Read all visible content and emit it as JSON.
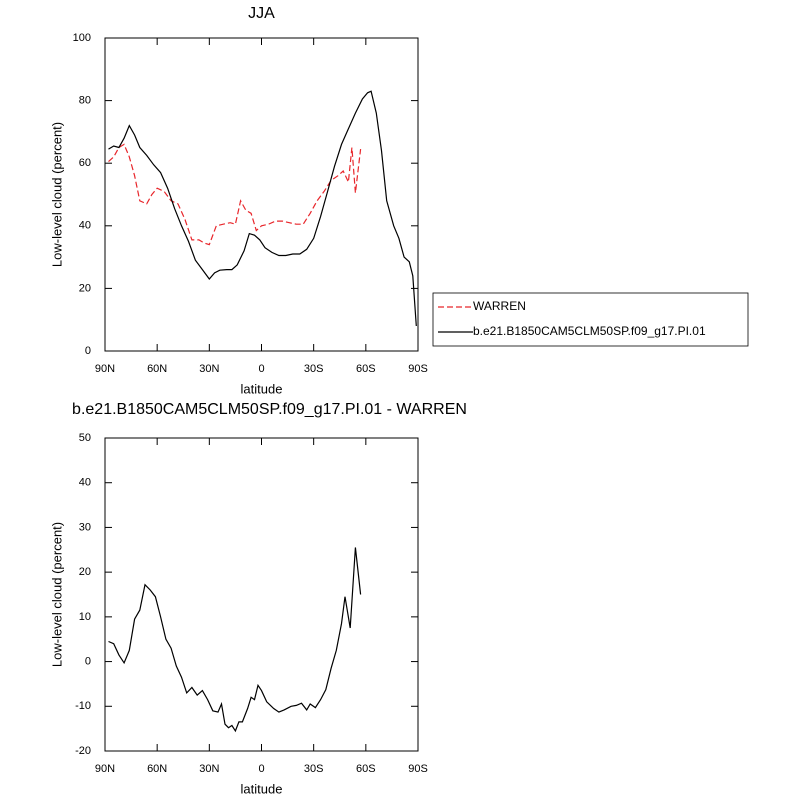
{
  "chart_data": [
    {
      "type": "line",
      "title": "JJA",
      "x_label": "latitude",
      "y_label": "Low-level cloud (percent)",
      "xlim": [
        90,
        -90
      ],
      "xticks": [
        {
          "value": 90,
          "label": "90N"
        },
        {
          "value": 60,
          "label": "60N"
        },
        {
          "value": 30,
          "label": "30N"
        },
        0,
        {
          "value": -30,
          "label": "30S"
        },
        {
          "value": -60,
          "label": "60S"
        },
        {
          "value": -90,
          "label": "90S"
        }
      ],
      "ylim": [
        0,
        100
      ],
      "yticks": [
        0,
        20,
        40,
        60,
        80,
        100
      ],
      "legend": "right",
      "series": [
        {
          "name": "WARREN",
          "color": "#e8262b",
          "dashed": true,
          "x": [
            88,
            85,
            82,
            79,
            76,
            73,
            70,
            66,
            63,
            60,
            56,
            52,
            48,
            44,
            40,
            36,
            33,
            30,
            26,
            22,
            18,
            15,
            12,
            9,
            6,
            3,
            0,
            -4,
            -8,
            -12,
            -16,
            -20,
            -24,
            -28,
            -32,
            -36,
            -40,
            -44,
            -47,
            -50,
            -52,
            -54,
            -57
          ],
          "values": [
            60.5,
            62,
            65,
            66,
            62,
            56,
            48,
            47,
            50,
            52,
            51,
            48,
            47,
            42,
            35.5,
            35.5,
            34.5,
            34,
            40,
            40.5,
            41,
            40.5,
            48,
            45,
            44,
            38.5,
            40,
            40.5,
            41.5,
            41.5,
            41,
            40.5,
            40.5,
            44,
            48,
            51,
            54.5,
            56,
            57.5,
            54,
            65,
            50.5,
            64.5
          ]
        },
        {
          "name": "b.e21.B1850CAM5CLM50SP.f09_g17.PI.01",
          "color": "#000000",
          "dashed": false,
          "x": [
            88,
            85,
            82,
            79,
            76,
            73,
            70,
            66,
            62,
            58,
            54,
            50,
            46,
            42,
            38,
            34,
            30,
            27,
            24,
            20,
            17,
            14,
            10,
            7,
            4,
            1,
            -2,
            -6,
            -10,
            -14,
            -18,
            -22,
            -26,
            -30,
            -34,
            -38,
            -42,
            -46,
            -50,
            -54,
            -58,
            -61,
            -63,
            -66,
            -69,
            -72,
            -76,
            -79,
            -82,
            -85,
            -87,
            -89
          ],
          "values": [
            64.5,
            65.5,
            65,
            68,
            72,
            69,
            65,
            62.5,
            59.5,
            57,
            52,
            45.5,
            40,
            35,
            29,
            26,
            23,
            25,
            25.8,
            26,
            26,
            27.5,
            32,
            37.5,
            37,
            35.5,
            33,
            31.5,
            30.5,
            30.5,
            31,
            31,
            32.5,
            36,
            43,
            51,
            59,
            66,
            71,
            76,
            80.5,
            82.5,
            83,
            76,
            64,
            48,
            40,
            36,
            30,
            28.5,
            24,
            8
          ]
        }
      ]
    },
    {
      "type": "line",
      "title": "b.e21.B1850CAM5CLM50SP.f09_g17.PI.01 - WARREN",
      "x_label": "latitude",
      "y_label": "Low-level cloud (percent)",
      "xlim": [
        90,
        -90
      ],
      "xticks": [
        {
          "value": 90,
          "label": "90N"
        },
        {
          "value": 60,
          "label": "60N"
        },
        {
          "value": 30,
          "label": "30N"
        },
        0,
        {
          "value": -30,
          "label": "30S"
        },
        {
          "value": -60,
          "label": "60S"
        },
        {
          "value": -90,
          "label": "90S"
        }
      ],
      "ylim": [
        -20,
        50
      ],
      "yticks": [
        -20,
        -10,
        0,
        10,
        20,
        30,
        40,
        50
      ],
      "series": [
        {
          "color": "#000000",
          "dashed": false,
          "x": [
            88,
            85,
            82,
            79,
            76,
            73,
            70,
            67,
            64,
            61,
            58,
            55,
            52,
            49,
            46,
            43,
            40,
            37,
            34,
            31,
            28,
            25,
            23,
            21,
            19,
            17,
            15,
            13,
            11,
            8,
            6,
            4,
            2,
            0,
            -3,
            -7,
            -10,
            -13,
            -17,
            -20,
            -23,
            -26,
            -28,
            -31,
            -34,
            -37,
            -40,
            -43,
            -46,
            -48,
            -51,
            -54,
            -57
          ],
          "values": [
            4.5,
            4,
            1.5,
            -0.3,
            2.5,
            9.5,
            11.5,
            17.2,
            16,
            14.5,
            10,
            5,
            3,
            -1,
            -3.5,
            -7,
            -5.8,
            -7.5,
            -6.5,
            -8.5,
            -11,
            -11.3,
            -9.5,
            -14,
            -14.8,
            -14.3,
            -15.5,
            -13.5,
            -13.5,
            -10.5,
            -8,
            -8.5,
            -5.3,
            -6.5,
            -9,
            -10.5,
            -11.3,
            -10.8,
            -10,
            -9.8,
            -9.3,
            -10.8,
            -9.5,
            -10.3,
            -8.5,
            -6.3,
            -1.5,
            2.5,
            8.5,
            14.5,
            7.5,
            25.5,
            15
          ]
        }
      ]
    }
  ]
}
